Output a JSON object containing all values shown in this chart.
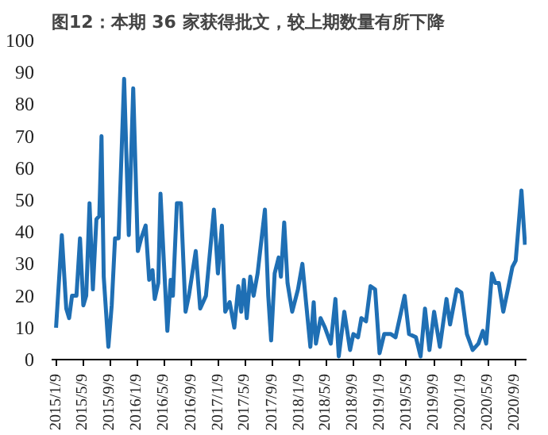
{
  "chart_data": {
    "type": "line",
    "title": "图12：本期 36 家获得批文，较上期数量有所下降",
    "x": [
      "2015-01-09",
      "2015-02-04",
      "2015-02-24",
      "2015-03-09",
      "2015-03-22",
      "2015-04-11",
      "2015-04-27",
      "2015-05-12",
      "2015-05-25",
      "2015-06-09",
      "2015-06-24",
      "2015-07-10",
      "2015-07-23",
      "2015-08-02",
      "2015-08-12",
      "2015-09-02",
      "2015-09-17",
      "2015-10-02",
      "2015-10-18",
      "2015-11-12",
      "2015-12-03",
      "2015-12-23",
      "2016-01-13",
      "2016-01-28",
      "2016-02-17",
      "2016-03-04",
      "2016-03-19",
      "2016-03-29",
      "2016-04-14",
      "2016-04-24",
      "2016-05-09",
      "2016-05-25",
      "2016-06-09",
      "2016-06-19",
      "2016-07-07",
      "2016-07-25",
      "2016-08-15",
      "2016-08-30",
      "2016-09-30",
      "2016-10-20",
      "2016-11-15",
      "2016-12-21",
      "2017-01-08",
      "2017-01-26",
      "2017-02-10",
      "2017-03-02",
      "2017-03-23",
      "2017-04-10",
      "2017-04-23",
      "2017-05-05",
      "2017-05-18",
      "2017-06-03",
      "2017-06-18",
      "2017-07-06",
      "2017-07-24",
      "2017-08-08",
      "2017-08-23",
      "2017-09-05",
      "2017-09-21",
      "2017-10-09",
      "2017-10-19",
      "2017-11-03",
      "2017-11-18",
      "2017-12-09",
      "2018-01-04",
      "2018-01-24",
      "2018-02-08",
      "2018-03-01",
      "2018-03-16",
      "2018-03-26",
      "2018-04-16",
      "2018-05-06",
      "2018-06-01",
      "2018-06-22",
      "2018-07-07",
      "2018-08-01",
      "2018-08-27",
      "2018-09-11",
      "2018-10-02",
      "2018-10-17",
      "2018-11-07",
      "2018-11-27",
      "2018-12-18",
      "2019-01-07",
      "2019-01-28",
      "2019-02-27",
      "2019-03-20",
      "2019-04-30",
      "2019-05-20",
      "2019-06-20",
      "2019-07-11",
      "2019-07-31",
      "2019-08-20",
      "2019-09-10",
      "2019-10-06",
      "2019-11-05",
      "2019-11-21",
      "2019-12-21",
      "2020-01-11",
      "2020-02-05",
      "2020-03-02",
      "2020-03-28",
      "2020-04-17",
      "2020-05-02",
      "2020-05-28",
      "2020-06-12",
      "2020-06-28",
      "2020-07-18",
      "2020-08-08",
      "2020-08-28",
      "2020-09-12",
      "2020-10-08",
      "2020-10-24"
    ],
    "series": [
      {
        "color": "#1f6fb4",
        "values": [
          10,
          39,
          16,
          13,
          20,
          20,
          38,
          17,
          20,
          49,
          22,
          44,
          45,
          70,
          26,
          4,
          17,
          38,
          38,
          88,
          39,
          85,
          34,
          38,
          42,
          25,
          28,
          19,
          24,
          52,
          31,
          9,
          25,
          20,
          49,
          49,
          15,
          20,
          34,
          16,
          20,
          47,
          27,
          42,
          15,
          18,
          10,
          23,
          15,
          25,
          13,
          26,
          20,
          27,
          38,
          47,
          20,
          6,
          27,
          32,
          26,
          43,
          24,
          15,
          22,
          30,
          19,
          4,
          18,
          5,
          13,
          10,
          5,
          19,
          1,
          15,
          3,
          8,
          7,
          13,
          12,
          23,
          22,
          2,
          8,
          8,
          7,
          20,
          8,
          7,
          1,
          16,
          3,
          15,
          4,
          19,
          11,
          22,
          21,
          8,
          3,
          5,
          9,
          5,
          27,
          24,
          24,
          15,
          22,
          29,
          31,
          53,
          36
        ]
      }
    ],
    "xlim": [
      "2014-12-20",
      "2020-10-31"
    ],
    "xticks": [
      {
        "value": "2015-01-09",
        "label": "2015/1/9"
      },
      {
        "value": "2015-05-09",
        "label": "2015/5/9"
      },
      {
        "value": "2015-09-09",
        "label": "2015/9/9"
      },
      {
        "value": "2016-01-09",
        "label": "2016/1/9"
      },
      {
        "value": "2016-05-09",
        "label": "2016/5/9"
      },
      {
        "value": "2016-09-09",
        "label": "2016/9/9"
      },
      {
        "value": "2017-01-09",
        "label": "2017/1/9"
      },
      {
        "value": "2017-05-09",
        "label": "2017/5/9"
      },
      {
        "value": "2017-09-09",
        "label": "2017/9/9"
      },
      {
        "value": "2018-01-09",
        "label": "2018/1/9"
      },
      {
        "value": "2018-05-09",
        "label": "2018/5/9"
      },
      {
        "value": "2018-09-09",
        "label": "2018/9/9"
      },
      {
        "value": "2019-01-09",
        "label": "2019/1/9"
      },
      {
        "value": "2019-05-09",
        "label": "2019/5/9"
      },
      {
        "value": "2019-09-09",
        "label": "2019/9/9"
      },
      {
        "value": "2020-01-09",
        "label": "2020/1/9"
      },
      {
        "value": "2020-05-09",
        "label": "2020/5/9"
      },
      {
        "value": "2020-09-09",
        "label": "2020/9/9"
      }
    ],
    "ylim": [
      0,
      100
    ],
    "yticks": [
      0,
      10,
      20,
      30,
      40,
      50,
      60,
      70,
      80,
      90,
      100
    ],
    "grid": false,
    "marker": "none",
    "line_style": "solid"
  }
}
